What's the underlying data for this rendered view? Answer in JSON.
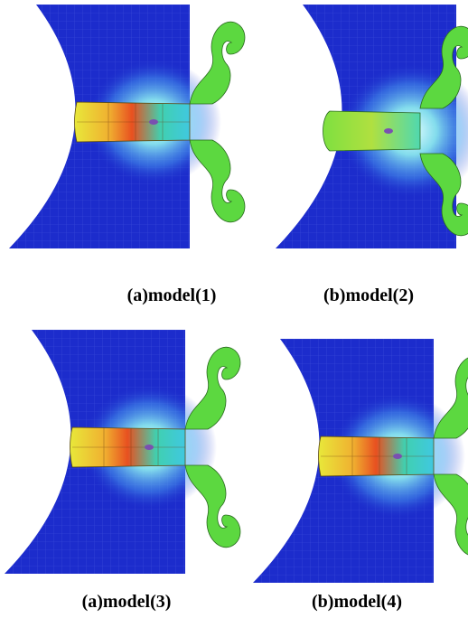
{
  "captions": [
    "(a)model(1)",
    "(b)model(2)",
    "(a)model(3)",
    "(b)model(4)"
  ]
}
